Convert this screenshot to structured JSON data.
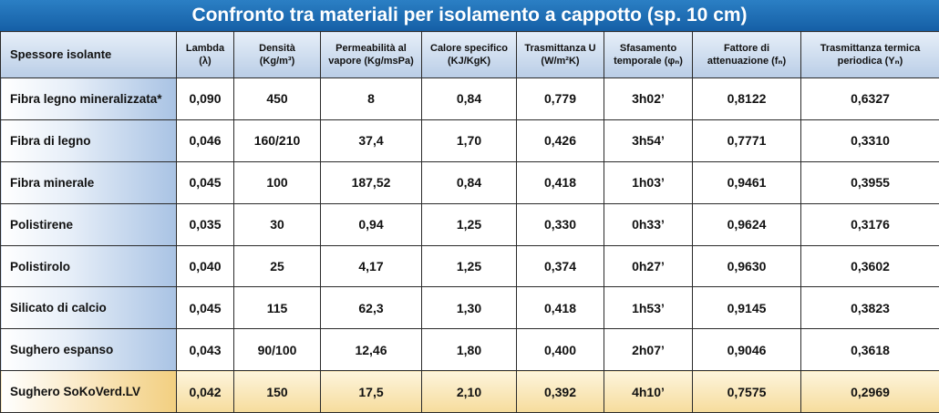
{
  "title": "Confronto tra materiali per isolamento a cappotto (sp. 10 cm)",
  "headers": [
    "Spessore isolante",
    "Lambda\n(λ)",
    "Densità\n(Kg/m³)",
    "Permeabilità al\nvapore (Kg/msPa)",
    "Calore specifico\n(KJ/KgK)",
    "Trasmittanza U\n(W/m²K)",
    "Sfasamento\ntemporale (φₙ)",
    "Fattore di\nattenuazione (fₙ)",
    "Trasmittanza termica\nperiodica (Yₙ)"
  ],
  "rows": [
    {
      "name": "Fibra legno mineralizzata*",
      "cells": [
        "0,090",
        "450",
        "8",
        "0,84",
        "0,779",
        "3h02’",
        "0,8122",
        "0,6327"
      ]
    },
    {
      "name": "Fibra di legno",
      "cells": [
        "0,046",
        "160/210",
        "37,4",
        "1,70",
        "0,426",
        "3h54’",
        "0,7771",
        "0,3310"
      ]
    },
    {
      "name": "Fibra minerale",
      "cells": [
        "0,045",
        "100",
        "187,52",
        "0,84",
        "0,418",
        "1h03’",
        "0,9461",
        "0,3955"
      ]
    },
    {
      "name": "Polistirene",
      "cells": [
        "0,035",
        "30",
        "0,94",
        "1,25",
        "0,330",
        "0h33’",
        "0,9624",
        "0,3176"
      ]
    },
    {
      "name": "Polistirolo",
      "cells": [
        "0,040",
        "25",
        "4,17",
        "1,25",
        "0,374",
        "0h27’",
        "0,9630",
        "0,3602"
      ]
    },
    {
      "name": "Silicato di calcio",
      "cells": [
        "0,045",
        "115",
        "62,3",
        "1,30",
        "0,418",
        "1h53’",
        "0,9145",
        "0,3823"
      ]
    },
    {
      "name": "Sughero espanso",
      "cells": [
        "0,043",
        "90/100",
        "12,46",
        "1,80",
        "0,400",
        "2h07’",
        "0,9046",
        "0,3618"
      ]
    },
    {
      "name": "Sughero SoKoVerd.LV",
      "cells": [
        "0,042",
        "150",
        "17,5",
        "2,10",
        "0,392",
        "4h10’",
        "0,7575",
        "0,2969"
      ]
    }
  ],
  "colors": {
    "title_bar": "#1f6fb8",
    "row_header_blue": "#a9c3e4",
    "highlight_row": "#f6dc9c"
  }
}
